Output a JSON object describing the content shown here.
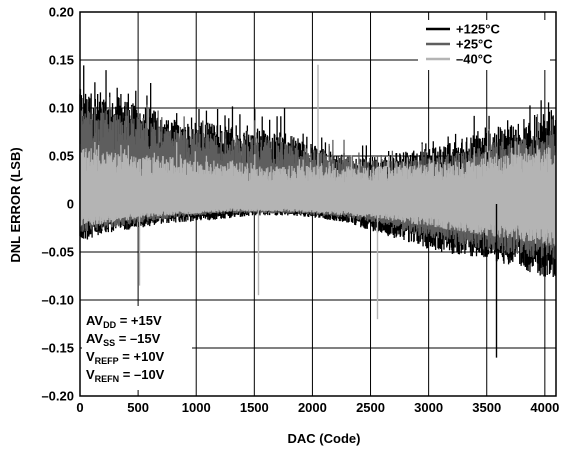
{
  "chart_data": {
    "type": "line",
    "title": "",
    "xlabel": "DAC (Code)",
    "ylabel": "DNL ERROR (LSB)",
    "xlim": [
      0,
      4096
    ],
    "ylim": [
      -0.2,
      0.2
    ],
    "x_ticks": [
      0,
      500,
      1000,
      1500,
      2000,
      2500,
      3000,
      3500,
      4000
    ],
    "x_tick_labels": [
      "0",
      "500",
      "1000",
      "1500",
      "2000",
      "2500",
      "3000",
      "3500",
      "4000"
    ],
    "y_ticks": [
      -0.2,
      -0.15,
      -0.1,
      -0.05,
      0,
      0.05,
      0.1,
      0.15,
      0.2
    ],
    "y_tick_labels": [
      "–0.20",
      "–0.15",
      "–0.10",
      "–0.05",
      "0",
      "0.05",
      "0.10",
      "0.15",
      "0.20"
    ],
    "grid": true,
    "legend_position": "top-right",
    "series": [
      {
        "name": "+125°C",
        "color": "#000000",
        "x": [
          0,
          256,
          512,
          768,
          1024,
          1280,
          1536,
          1792,
          2048,
          2304,
          2560,
          2816,
          3072,
          3328,
          3584,
          3840,
          4095
        ],
        "upper": [
          0.12,
          0.115,
          0.105,
          0.09,
          0.085,
          0.085,
          0.08,
          0.075,
          0.06,
          0.05,
          0.05,
          0.055,
          0.06,
          0.07,
          0.08,
          0.09,
          0.1
        ],
        "lower": [
          -0.04,
          -0.03,
          -0.025,
          -0.02,
          -0.018,
          -0.015,
          -0.012,
          -0.012,
          -0.015,
          -0.02,
          -0.03,
          -0.04,
          -0.05,
          -0.055,
          -0.06,
          -0.07,
          -0.08
        ]
      },
      {
        "name": "+25°C",
        "color": "#5e5e5e",
        "x": [
          0,
          256,
          512,
          768,
          1024,
          1280,
          1536,
          1792,
          2048,
          2304,
          2560,
          2816,
          3072,
          3328,
          3584,
          3840,
          4095
        ],
        "upper": [
          0.1,
          0.095,
          0.09,
          0.08,
          0.075,
          0.07,
          0.07,
          0.065,
          0.055,
          0.05,
          0.045,
          0.045,
          0.05,
          0.055,
          0.065,
          0.07,
          0.08
        ],
        "lower": [
          -0.03,
          -0.025,
          -0.02,
          -0.015,
          -0.012,
          -0.01,
          -0.01,
          -0.01,
          -0.012,
          -0.015,
          -0.02,
          -0.03,
          -0.04,
          -0.045,
          -0.05,
          -0.055,
          -0.06
        ]
      },
      {
        "name": "–40°C",
        "color": "#b4b4b4",
        "x": [
          0,
          256,
          512,
          768,
          1024,
          1280,
          1536,
          1792,
          2048,
          2304,
          2560,
          2816,
          3072,
          3328,
          3584,
          3840,
          4095
        ],
        "upper": [
          0.06,
          0.055,
          0.05,
          0.05,
          0.045,
          0.045,
          0.04,
          0.04,
          0.04,
          0.04,
          0.04,
          0.04,
          0.045,
          0.045,
          0.05,
          0.055,
          0.06
        ],
        "lower": [
          -0.025,
          -0.02,
          -0.015,
          -0.012,
          -0.01,
          -0.008,
          -0.008,
          -0.008,
          -0.01,
          -0.012,
          -0.015,
          -0.02,
          -0.025,
          -0.03,
          -0.035,
          -0.04,
          -0.045
        ]
      }
    ],
    "spikes": [
      {
        "series": "–40°C",
        "x": 2048,
        "y": 0.145
      },
      {
        "series": "–40°C",
        "x": 512,
        "y": -0.085
      },
      {
        "series": "–40°C",
        "x": 1536,
        "y": -0.095
      },
      {
        "series": "–40°C",
        "x": 2560,
        "y": -0.12
      },
      {
        "series": "+125°C",
        "x": 3584,
        "y": -0.16
      }
    ],
    "conditions": [
      {
        "main": "AV",
        "sub": "DD",
        "rest": " = +15V"
      },
      {
        "main": "AV",
        "sub": "SS",
        "rest": " = –15V"
      },
      {
        "main": "V",
        "sub": "REFP",
        "rest": " = +10V"
      },
      {
        "main": "V",
        "sub": "REFN",
        "rest": " = –10V"
      }
    ]
  }
}
